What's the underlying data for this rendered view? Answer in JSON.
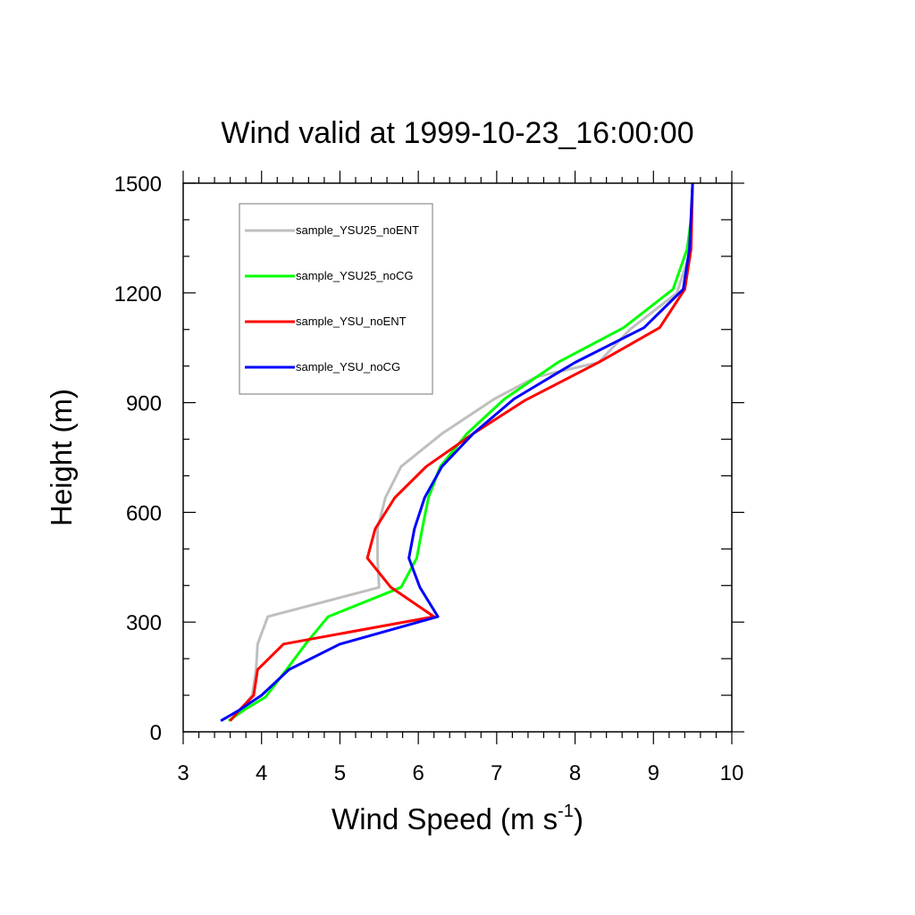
{
  "chart_data": {
    "type": "line",
    "title": "Wind valid at 1999-10-23_16:00:00",
    "xlabel": "Wind Speed (m s",
    "xlabel_sup": "-1",
    "xlabel_end": ")",
    "ylabel": "Height (m)",
    "xlim": [
      3,
      10
    ],
    "ylim": [
      0,
      1500
    ],
    "xticks": [
      "3",
      "4",
      "5",
      "6",
      "7",
      "8",
      "9",
      "10"
    ],
    "yticks": [
      "0",
      "300",
      "600",
      "900",
      "1200",
      "1500"
    ],
    "grid": false,
    "legend_position": "top-left",
    "series": [
      {
        "name": "sample_YSU25_noENT",
        "color": "#bfbfbf",
        "x": [
          3.58,
          3.7,
          3.88,
          3.93,
          3.95,
          4.08,
          5.5,
          5.48,
          5.48,
          5.58,
          5.78,
          6.3,
          6.97,
          7.5,
          8.3,
          8.7,
          9.3,
          9.45,
          9.48,
          9.5
        ],
        "y": [
          30,
          50,
          100,
          170,
          240,
          315,
          395,
          475,
          555,
          640,
          725,
          815,
          910,
          970,
          1010,
          1100,
          1200,
          1300,
          1400,
          1500
        ]
      },
      {
        "name": "sample_YSU25_noCG",
        "color": "#00ff00",
        "x": [
          3.58,
          3.78,
          4.05,
          4.3,
          4.58,
          4.85,
          5.78,
          5.98,
          6.05,
          6.13,
          6.28,
          6.62,
          7.1,
          7.78,
          8.62,
          9.25,
          9.43,
          9.48,
          9.5
        ],
        "y": [
          30,
          60,
          95,
          165,
          245,
          315,
          395,
          475,
          555,
          640,
          725,
          815,
          910,
          1010,
          1105,
          1210,
          1320,
          1400,
          1500
        ]
      },
      {
        "name": "sample_YSU_noENT",
        "color": "#ff0000",
        "x": [
          3.6,
          3.72,
          3.9,
          3.95,
          4.28,
          6.2,
          5.65,
          5.35,
          5.45,
          5.7,
          6.1,
          6.7,
          7.35,
          8.3,
          9.08,
          9.4,
          9.48,
          9.5
        ],
        "y": [
          30,
          60,
          100,
          170,
          240,
          315,
          395,
          475,
          555,
          640,
          725,
          815,
          905,
          1010,
          1105,
          1210,
          1320,
          1500
        ]
      },
      {
        "name": "sample_YSU_noCG",
        "color": "#0000ff",
        "x": [
          3.48,
          3.72,
          4.0,
          4.35,
          5.0,
          6.25,
          6.02,
          5.88,
          5.95,
          6.08,
          6.3,
          6.7,
          7.22,
          8.0,
          8.88,
          9.38,
          9.46,
          9.5
        ],
        "y": [
          30,
          60,
          100,
          170,
          240,
          315,
          395,
          475,
          555,
          640,
          725,
          815,
          910,
          1010,
          1105,
          1210,
          1320,
          1500
        ]
      }
    ]
  }
}
